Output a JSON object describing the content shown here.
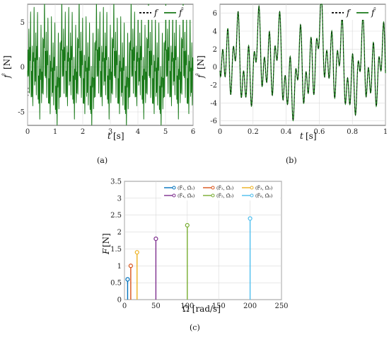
{
  "chart_data": [
    {
      "type": "line",
      "panel": "a",
      "caption": "(a)",
      "xlabel_var": "t",
      "xlabel_unit": "[s]",
      "ylabel_var": "f̂",
      "ylabel_unit": "[N]",
      "xlim": [
        0,
        6
      ],
      "ylim": [
        -6.5,
        7
      ],
      "xticks": [
        "0",
        "1",
        "2",
        "3",
        "4",
        "5",
        "6"
      ],
      "yticks": [
        "-5",
        "0",
        "5"
      ],
      "grid": true,
      "legend_placement": "top-right",
      "series": [
        {
          "name": "f",
          "style": "dashed",
          "color": "#000000"
        },
        {
          "name": "f̂",
          "style": "solid",
          "color": "#1a7a1a"
        }
      ],
      "signal": {
        "components": [
          {
            "amp": 0.6,
            "omega": 5
          },
          {
            "amp": 1.0,
            "omega": 10
          },
          {
            "amp": 1.4,
            "omega": 20
          },
          {
            "amp": 1.8,
            "omega": 50
          },
          {
            "amp": 2.2,
            "omega": 100
          },
          {
            "amp": 2.4,
            "omega": 200
          }
        ]
      }
    },
    {
      "type": "line",
      "panel": "b",
      "caption": "(b)",
      "xlabel_var": "t",
      "xlabel_unit": "[s]",
      "ylabel_var": "f̂",
      "ylabel_unit": "[N]",
      "xlim": [
        0,
        1
      ],
      "ylim": [
        -6.5,
        7
      ],
      "xticks": [
        "0",
        "0.2",
        "0.4",
        "0.6",
        "0.8",
        "1"
      ],
      "yticks": [
        "-6",
        "-4",
        "-2",
        "0",
        "2",
        "4",
        "6"
      ],
      "grid": true,
      "legend_placement": "top-right",
      "series": [
        {
          "name": "f",
          "style": "dashed",
          "color": "#000000"
        },
        {
          "name": "f̂",
          "style": "solid",
          "color": "#1a7a1a"
        }
      ]
    },
    {
      "type": "stem",
      "panel": "c",
      "caption": "(c)",
      "xlabel": "Ω [rad/s]",
      "ylabel_var": "F",
      "ylabel_unit": "[N]",
      "xlim": [
        0,
        250
      ],
      "ylim": [
        0,
        3.5
      ],
      "xticks": [
        "0",
        "50",
        "100",
        "150",
        "200",
        "250"
      ],
      "yticks": [
        "0",
        "0.5",
        "1",
        "1.5",
        "2",
        "2.5",
        "3",
        "3.5"
      ],
      "grid": true,
      "legend_placement": "top-right",
      "series": [
        {
          "name": "(F̂₁, Ω̂₁)",
          "x": 5,
          "y": 0.6,
          "color": "#0072bd"
        },
        {
          "name": "(F̂₂, Ω̂₂)",
          "x": 10,
          "y": 1.0,
          "color": "#d95319"
        },
        {
          "name": "(F̂₃, Ω̂₃)",
          "x": 20,
          "y": 1.4,
          "color": "#edb120"
        },
        {
          "name": "(F̂₄, Ω̂₄)",
          "x": 50,
          "y": 1.8,
          "color": "#7e2f8e"
        },
        {
          "name": "(F̂₅, Ω̂₅)",
          "x": 100,
          "y": 2.2,
          "color": "#77ac30"
        },
        {
          "name": "(F̂₆, Ω̂₆)",
          "x": 200,
          "y": 2.4,
          "color": "#4dbeee"
        }
      ]
    }
  ]
}
